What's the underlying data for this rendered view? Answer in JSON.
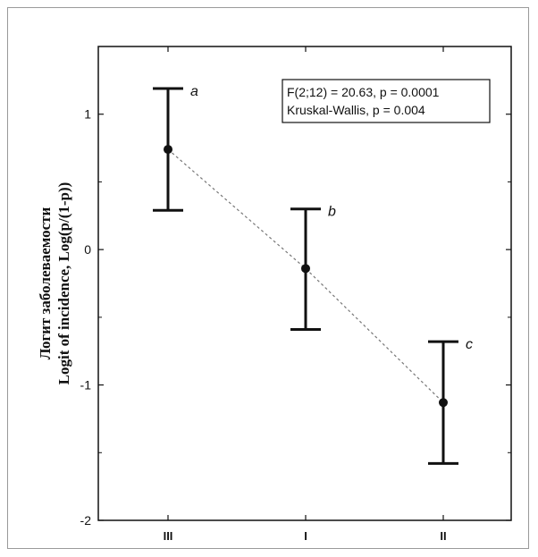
{
  "chart_data": {
    "type": "errorbar",
    "y_axis_labels": [
      "Логит заболеваемости",
      "Logit of incidence, Log(p/(1-p))"
    ],
    "categories": [
      "III",
      "I",
      "II"
    ],
    "y_ticks": [
      1,
      0,
      -1,
      -2
    ],
    "y_tick_labels": [
      "1",
      "0",
      "-1",
      "-2"
    ],
    "ylim": [
      -2,
      1.5
    ],
    "series": [
      {
        "means": [
          0.74,
          -0.14,
          -1.13
        ],
        "upper": [
          1.19,
          0.3,
          -0.68
        ],
        "lower": [
          0.29,
          -0.59,
          -1.58
        ],
        "letters": [
          "a",
          "b",
          "c"
        ]
      }
    ],
    "annotation": [
      "F(2;12) = 20.63, p = 0.0001",
      "Kruskal-Wallis, p = 0.004"
    ],
    "trend_line": "dashed",
    "grid": false,
    "legend": "none"
  },
  "colors": {
    "ink": "#111111",
    "frame": "#9a9a9a",
    "trend": "#777777"
  }
}
